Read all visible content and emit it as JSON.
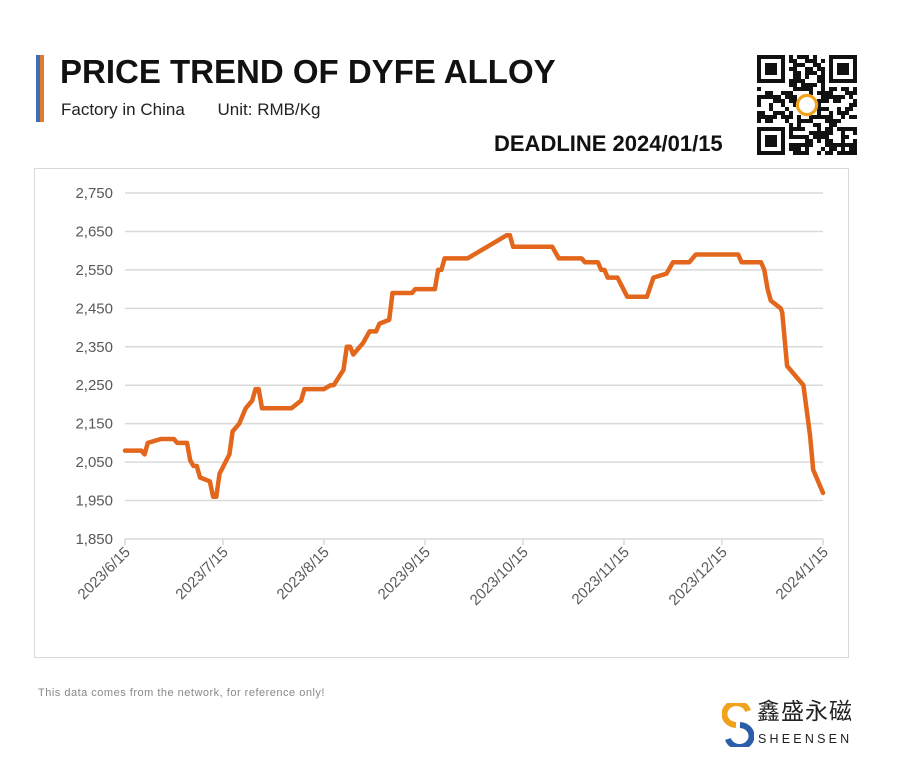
{
  "header": {
    "title": "PRICE TREND OF DYFE ALLOY",
    "factory": "Factory in China",
    "unit": "Unit: RMB/Kg",
    "deadline": "DEADLINE 2024/01/15"
  },
  "colors": {
    "line": "#e2661c",
    "grid": "#d9d9d9",
    "accent_blue": "#3d6fb4",
    "accent_orange": "#e6792e"
  },
  "footnote": "This data comes from the network, for reference only!",
  "logo": {
    "cn": "鑫盛永磁",
    "en": "SHEENSEN"
  },
  "chart_data": {
    "type": "line",
    "title": "PRICE TREND OF DYFE ALLOY",
    "xlabel": "",
    "ylabel": "RMB/Kg",
    "x_unit": "days since 2023/6/15",
    "ylim": [
      1850,
      2750
    ],
    "xlim": [
      0,
      214
    ],
    "yticks": [
      1850,
      1950,
      2050,
      2150,
      2250,
      2350,
      2450,
      2550,
      2650,
      2750
    ],
    "ytick_labels": [
      "1,850",
      "1,950",
      "2,050",
      "2,150",
      "2,250",
      "2,350",
      "2,450",
      "2,550",
      "2,650",
      "2,750"
    ],
    "xticks": [
      0,
      30,
      61,
      92,
      122,
      153,
      183,
      214
    ],
    "xtick_labels": [
      "2023/6/15",
      "2023/7/15",
      "2023/8/15",
      "2023/9/15",
      "2023/10/15",
      "2023/11/15",
      "2023/12/15",
      "2024/1/15"
    ],
    "grid": true,
    "legend": "none",
    "series": [
      {
        "name": "DyFe Alloy",
        "points": [
          [
            0,
            2080
          ],
          [
            5,
            2080
          ],
          [
            6,
            2070
          ],
          [
            7,
            2100
          ],
          [
            11,
            2110
          ],
          [
            15,
            2110
          ],
          [
            16,
            2100
          ],
          [
            19,
            2100
          ],
          [
            20,
            2055
          ],
          [
            21,
            2040
          ],
          [
            22,
            2040
          ],
          [
            23,
            2010
          ],
          [
            26,
            2000
          ],
          [
            27,
            1960
          ],
          [
            28,
            1960
          ],
          [
            29,
            2020
          ],
          [
            32,
            2070
          ],
          [
            33,
            2130
          ],
          [
            35,
            2150
          ],
          [
            37,
            2190
          ],
          [
            39,
            2210
          ],
          [
            40,
            2240
          ],
          [
            41,
            2240
          ],
          [
            42,
            2190
          ],
          [
            51,
            2190
          ],
          [
            54,
            2210
          ],
          [
            55,
            2240
          ],
          [
            61,
            2240
          ],
          [
            63,
            2250
          ],
          [
            64,
            2250
          ],
          [
            67,
            2290
          ],
          [
            68,
            2350
          ],
          [
            69,
            2350
          ],
          [
            70,
            2330
          ],
          [
            73,
            2360
          ],
          [
            75,
            2390
          ],
          [
            77,
            2390
          ],
          [
            78,
            2410
          ],
          [
            81,
            2420
          ],
          [
            82,
            2490
          ],
          [
            88,
            2490
          ],
          [
            89,
            2500
          ],
          [
            95,
            2500
          ],
          [
            96,
            2550
          ],
          [
            97,
            2550
          ],
          [
            98,
            2580
          ],
          [
            105,
            2580
          ],
          [
            117,
            2640
          ],
          [
            118,
            2640
          ],
          [
            119,
            2610
          ],
          [
            131,
            2610
          ],
          [
            133,
            2580
          ],
          [
            140,
            2580
          ],
          [
            141,
            2570
          ],
          [
            145,
            2570
          ],
          [
            146,
            2550
          ],
          [
            147,
            2550
          ],
          [
            148,
            2530
          ],
          [
            151,
            2530
          ],
          [
            154,
            2480
          ],
          [
            160,
            2480
          ],
          [
            162,
            2530
          ],
          [
            166,
            2540
          ],
          [
            168,
            2570
          ],
          [
            173,
            2570
          ],
          [
            175,
            2590
          ],
          [
            188,
            2590
          ],
          [
            189,
            2570
          ],
          [
            195,
            2570
          ],
          [
            196,
            2550
          ],
          [
            197,
            2500
          ],
          [
            198,
            2470
          ],
          [
            201,
            2450
          ],
          [
            201.5,
            2440
          ],
          [
            203,
            2300
          ],
          [
            207,
            2260
          ],
          [
            208,
            2250
          ],
          [
            210,
            2120
          ],
          [
            211,
            2030
          ],
          [
            214,
            1970
          ]
        ]
      }
    ]
  }
}
